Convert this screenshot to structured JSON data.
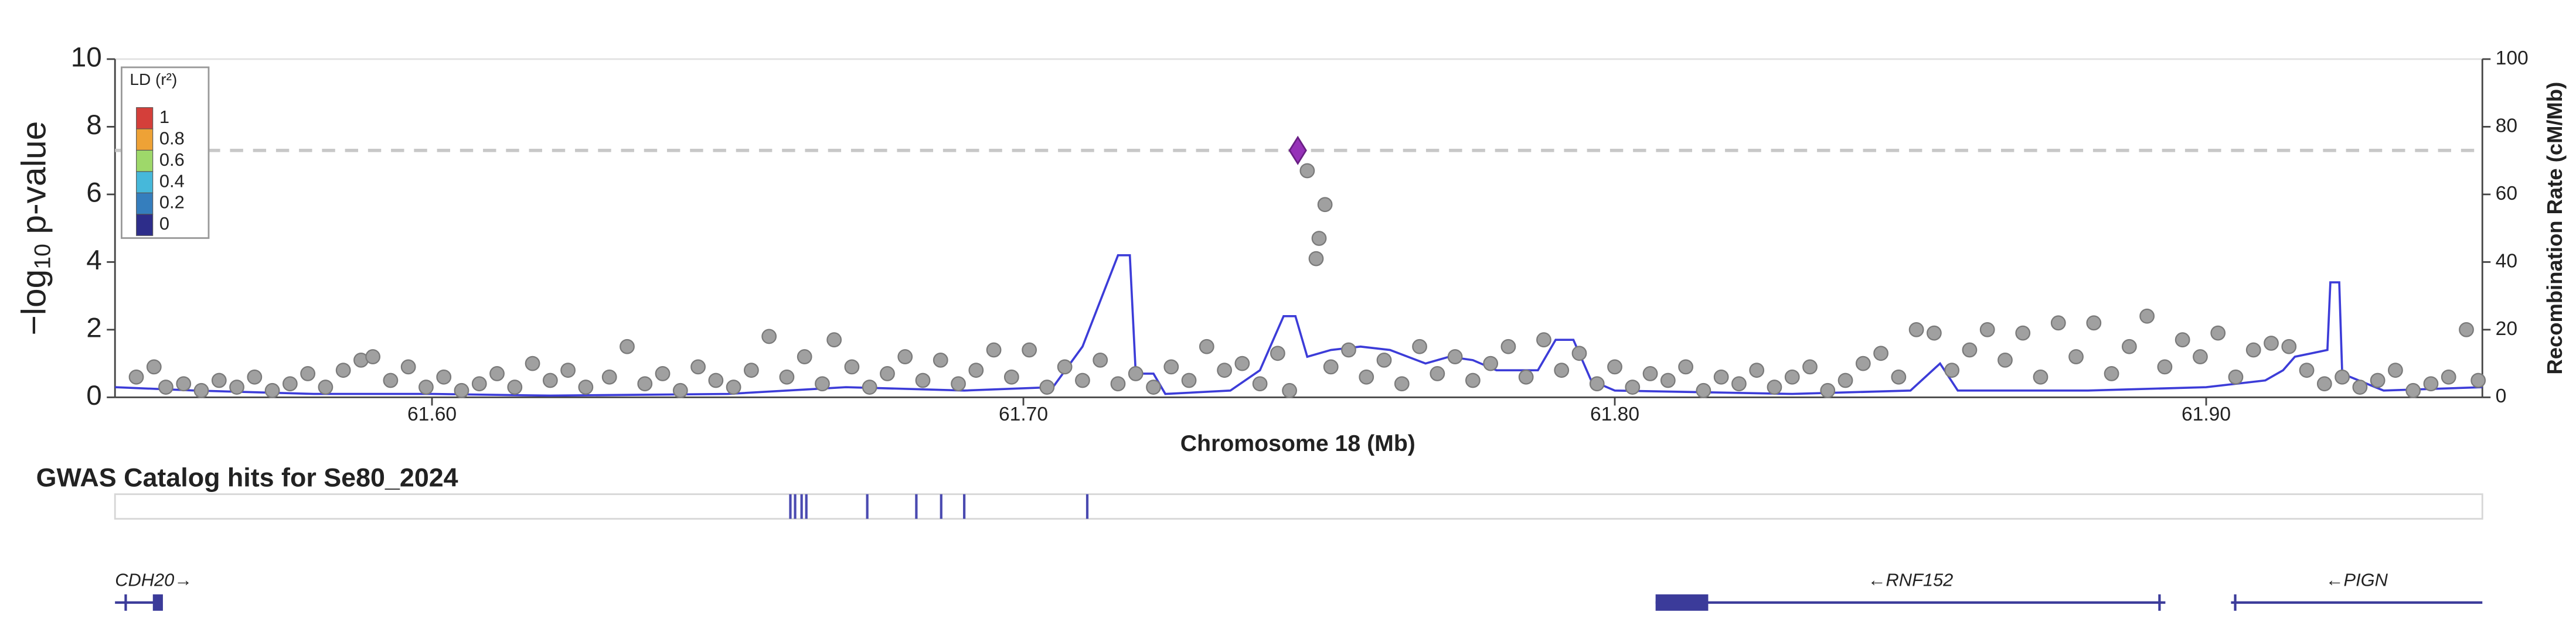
{
  "chart_data": {
    "type": "scatter",
    "ylabel": [
      "−log",
      "10",
      " p-value"
    ],
    "xlabel": "Chromosome 18 (Mb)",
    "y2label": "Recombination Rate (cM/Mb)",
    "xlim": [
      61.5464,
      61.9467
    ],
    "xticks": [
      {
        "value": 61.6,
        "label": "61.60"
      },
      {
        "value": 61.7,
        "label": "61.70"
      },
      {
        "value": 61.8,
        "label": "61.80"
      },
      {
        "value": 61.9,
        "label": "61.90"
      }
    ],
    "ylim": [
      0,
      10
    ],
    "yticks": [
      0,
      2,
      4,
      6,
      8,
      10
    ],
    "y2lim": [
      0,
      100
    ],
    "y2ticks": [
      0,
      20,
      40,
      60,
      80,
      100
    ],
    "threshold": 7.3,
    "ld_legend": {
      "title": "LD (r²)",
      "values": [
        1,
        0.8,
        0.6,
        0.4,
        0.2,
        0
      ],
      "colors": [
        "#d43f3a",
        "#eea236",
        "#9ed86a",
        "#46b8da",
        "#357ebd",
        "#2d2d8a"
      ]
    },
    "points": {
      "color": "#a0a0a0",
      "x": [
        61.55,
        61.553,
        61.555,
        61.558,
        61.561,
        61.564,
        61.567,
        61.57,
        61.573,
        61.576,
        61.579,
        61.582,
        61.585,
        61.588,
        61.59,
        61.593,
        61.596,
        61.599,
        61.602,
        61.605,
        61.608,
        61.611,
        61.614,
        61.617,
        61.62,
        61.623,
        61.626,
        61.63,
        61.633,
        61.636,
        61.639,
        61.642,
        61.645,
        61.648,
        61.651,
        61.654,
        61.657,
        61.66,
        61.663,
        61.666,
        61.668,
        61.671,
        61.674,
        61.677,
        61.68,
        61.683,
        61.686,
        61.689,
        61.692,
        61.695,
        61.698,
        61.701,
        61.704,
        61.707,
        61.71,
        61.713,
        61.716,
        61.719,
        61.722,
        61.725,
        61.728,
        61.731,
        61.734,
        61.737,
        61.74,
        61.743,
        61.745,
        61.748,
        61.751,
        61.75,
        61.7495,
        61.752,
        61.755,
        61.758,
        61.761,
        61.764,
        61.767,
        61.77,
        61.773,
        61.776,
        61.779,
        61.782,
        61.785,
        61.788,
        61.791,
        61.794,
        61.797,
        61.8,
        61.803,
        61.806,
        61.809,
        61.812,
        61.815,
        61.818,
        61.821,
        61.824,
        61.827,
        61.83,
        61.833,
        61.836,
        61.839,
        61.842,
        61.845,
        61.848,
        61.851,
        61.854,
        61.857,
        61.86,
        61.863,
        61.866,
        61.869,
        61.872,
        61.875,
        61.878,
        61.881,
        61.884,
        61.887,
        61.89,
        61.893,
        61.896,
        61.899,
        61.902,
        61.905,
        61.908,
        61.911,
        61.914,
        61.917,
        61.92,
        61.923,
        61.926,
        61.929,
        61.932,
        61.935,
        61.938,
        61.941,
        61.944,
        61.946
      ],
      "y": [
        0.6,
        0.9,
        0.3,
        0.4,
        0.2,
        0.5,
        0.3,
        0.6,
        0.2,
        0.4,
        0.7,
        0.3,
        0.8,
        1.1,
        1.2,
        0.5,
        0.9,
        0.3,
        0.6,
        0.2,
        0.4,
        0.7,
        0.3,
        1.0,
        0.5,
        0.8,
        0.3,
        0.6,
        1.5,
        0.4,
        0.7,
        0.2,
        0.9,
        0.5,
        0.3,
        0.8,
        1.8,
        0.6,
        1.2,
        0.4,
        1.7,
        0.9,
        0.3,
        0.7,
        1.2,
        0.5,
        1.1,
        0.4,
        0.8,
        1.4,
        0.6,
        1.4,
        0.3,
        0.9,
        0.5,
        1.1,
        0.4,
        0.7,
        0.3,
        0.9,
        0.5,
        1.5,
        0.8,
        1.0,
        0.4,
        1.3,
        0.2,
        6.7,
        5.7,
        4.7,
        4.1,
        0.9,
        1.4,
        0.6,
        1.1,
        0.4,
        1.5,
        0.7,
        1.2,
        0.5,
        1.0,
        1.5,
        0.6,
        1.7,
        0.8,
        1.3,
        0.4,
        0.9,
        0.3,
        0.7,
        0.5,
        0.9,
        0.2,
        0.6,
        0.4,
        0.8,
        0.3,
        0.6,
        0.9,
        0.2,
        0.5,
        1.0,
        1.3,
        0.6,
        2.0,
        1.9,
        0.8,
        1.4,
        2.0,
        1.1,
        1.9,
        0.6,
        2.2,
        1.2,
        2.2,
        0.7,
        1.5,
        2.4,
        0.9,
        1.7,
        1.2,
        1.9,
        0.6,
        1.4,
        1.6,
        1.5,
        0.8,
        0.4,
        0.6,
        0.3,
        0.5,
        0.8,
        0.2,
        0.4,
        0.6,
        2.0,
        0.5
      ]
    },
    "lead": {
      "x": 61.7464,
      "y": 7.3,
      "color": "#9632b8"
    },
    "recombination": {
      "axis": "y2",
      "color": "#3c3cd8",
      "x": [
        61.5464,
        61.56,
        61.58,
        61.6,
        61.62,
        61.65,
        61.67,
        61.69,
        61.705,
        61.71,
        61.716,
        61.718,
        61.719,
        61.722,
        61.724,
        61.735,
        61.74,
        61.744,
        61.746,
        61.748,
        61.752,
        61.757,
        61.762,
        61.768,
        61.772,
        61.776,
        61.78,
        61.787,
        61.79,
        61.793,
        61.796,
        61.8,
        61.83,
        61.85,
        61.855,
        61.858,
        61.88,
        61.9,
        61.91,
        61.913,
        61.915,
        61.9205,
        61.921,
        61.9225,
        61.923,
        61.93,
        61.9467
      ],
      "values": [
        3,
        2,
        1,
        1,
        0.5,
        1,
        3,
        2,
        3,
        15,
        42,
        42,
        7,
        7,
        1,
        2,
        8,
        24,
        24,
        12,
        14,
        15,
        14,
        10,
        12,
        11,
        8,
        8,
        17,
        17,
        5,
        2,
        1,
        2,
        10,
        2,
        2,
        3,
        5,
        8,
        12,
        14,
        34,
        34,
        7,
        2,
        3
      ]
    }
  },
  "gwas_track": {
    "title": "GWAS Catalog hits for Se80_2024",
    "color": "#4a4ab0",
    "hits": [
      61.6606,
      61.6614,
      61.6625,
      61.6633,
      61.6736,
      61.6819,
      61.6861,
      61.69,
      61.7108
    ]
  },
  "genes": {
    "color": "#3b3b9a",
    "items": [
      {
        "label": "CDH20→",
        "start": 61.5464,
        "end": 61.5542,
        "exons": [
          [
            61.548,
            61.5482
          ],
          [
            61.5528,
            61.5545
          ]
        ]
      },
      {
        "label": "←RNF152",
        "start": 61.8069,
        "end": 61.8931,
        "exons": [
          [
            61.8069,
            61.8158
          ],
          [
            61.8919,
            61.8922
          ]
        ]
      },
      {
        "label": "←PIGN",
        "start": 61.9042,
        "end": 61.9467,
        "exons": [
          [
            61.9047,
            61.905
          ]
        ]
      }
    ]
  }
}
